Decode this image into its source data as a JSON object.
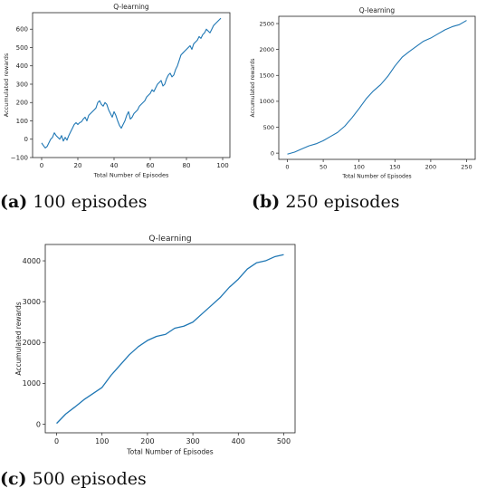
{
  "charts": [
    {
      "type": "line",
      "title": "Q-learning",
      "xlabel": "Total Number of Episodes",
      "ylabel": "Accumulated rewards",
      "xlim": [
        -5,
        104
      ],
      "ylim": [
        -100,
        690
      ],
      "xticks": [
        0,
        20,
        40,
        60,
        80,
        100
      ],
      "yticks": [
        -100,
        0,
        100,
        200,
        300,
        400,
        500,
        600
      ],
      "color": "#1f77b4",
      "x": [
        0,
        1,
        2,
        3,
        4,
        5,
        6,
        7,
        8,
        9,
        10,
        11,
        12,
        13,
        14,
        15,
        16,
        17,
        18,
        19,
        20,
        21,
        22,
        23,
        24,
        25,
        26,
        27,
        28,
        29,
        30,
        31,
        32,
        33,
        34,
        35,
        36,
        37,
        38,
        39,
        40,
        41,
        42,
        43,
        44,
        45,
        46,
        47,
        48,
        49,
        50,
        51,
        52,
        53,
        54,
        55,
        56,
        57,
        58,
        59,
        60,
        61,
        62,
        63,
        64,
        65,
        66,
        67,
        68,
        69,
        70,
        71,
        72,
        73,
        74,
        75,
        76,
        77,
        78,
        79,
        80,
        81,
        82,
        83,
        84,
        85,
        86,
        87,
        88,
        89,
        90,
        91,
        92,
        93,
        94,
        95,
        96,
        97,
        98,
        99
      ],
      "y": [
        -20,
        -35,
        -48,
        -40,
        -20,
        0,
        10,
        35,
        20,
        10,
        0,
        20,
        -10,
        10,
        -5,
        20,
        40,
        60,
        80,
        90,
        80,
        90,
        95,
        110,
        120,
        100,
        130,
        140,
        150,
        160,
        170,
        200,
        210,
        190,
        180,
        200,
        190,
        160,
        140,
        120,
        150,
        130,
        100,
        75,
        60,
        80,
        100,
        130,
        150,
        110,
        120,
        140,
        150,
        160,
        180,
        190,
        200,
        210,
        230,
        240,
        250,
        270,
        260,
        280,
        300,
        310,
        320,
        290,
        300,
        330,
        350,
        360,
        340,
        350,
        380,
        400,
        430,
        460,
        470,
        480,
        490,
        500,
        510,
        490,
        520,
        530,
        540,
        560,
        550,
        570,
        580,
        600,
        590,
        580,
        600,
        620,
        630,
        640,
        650,
        660
      ]
    },
    {
      "type": "line",
      "title": "Q-learning",
      "xlabel": "Total Number of Episodes",
      "ylabel": "Accumulated rewards",
      "xlim": [
        -12,
        262
      ],
      "ylim": [
        -120,
        2640
      ],
      "xticks": [
        0,
        50,
        100,
        150,
        200,
        250
      ],
      "yticks": [
        0,
        500,
        1000,
        1500,
        2000,
        2500
      ],
      "color": "#1f77b4",
      "x": [
        0,
        10,
        20,
        30,
        40,
        50,
        60,
        70,
        80,
        90,
        100,
        110,
        120,
        130,
        140,
        150,
        160,
        170,
        180,
        190,
        200,
        210,
        220,
        230,
        240,
        250
      ],
      "y": [
        -20,
        20,
        80,
        140,
        180,
        240,
        320,
        400,
        520,
        680,
        860,
        1050,
        1200,
        1320,
        1480,
        1680,
        1850,
        1960,
        2060,
        2160,
        2220,
        2300,
        2380,
        2440,
        2480,
        2560
      ]
    },
    {
      "type": "line",
      "title": "Q-learning",
      "xlabel": "Total Number of Episodes",
      "ylabel": "Accumulated rewards",
      "xlim": [
        -25,
        525
      ],
      "ylim": [
        -210,
        4400
      ],
      "xticks": [
        0,
        100,
        200,
        300,
        400,
        500
      ],
      "yticks": [
        0,
        1000,
        2000,
        3000,
        4000
      ],
      "color": "#1f77b4",
      "x": [
        0,
        20,
        40,
        60,
        80,
        100,
        120,
        140,
        160,
        180,
        200,
        220,
        240,
        260,
        280,
        300,
        320,
        340,
        360,
        380,
        400,
        420,
        440,
        460,
        480,
        500
      ],
      "y": [
        20,
        250,
        420,
        600,
        750,
        900,
        1200,
        1450,
        1700,
        1900,
        2050,
        2150,
        2200,
        2350,
        2400,
        2500,
        2700,
        2900,
        3100,
        3350,
        3550,
        3800,
        3950,
        4000,
        4100,
        4150
      ]
    }
  ],
  "captions": [
    {
      "tag": "(a)",
      "text": "100 episodes"
    },
    {
      "tag": "(b)",
      "text": "250 episodes"
    },
    {
      "tag": "(c)",
      "text": "500 episodes"
    }
  ]
}
